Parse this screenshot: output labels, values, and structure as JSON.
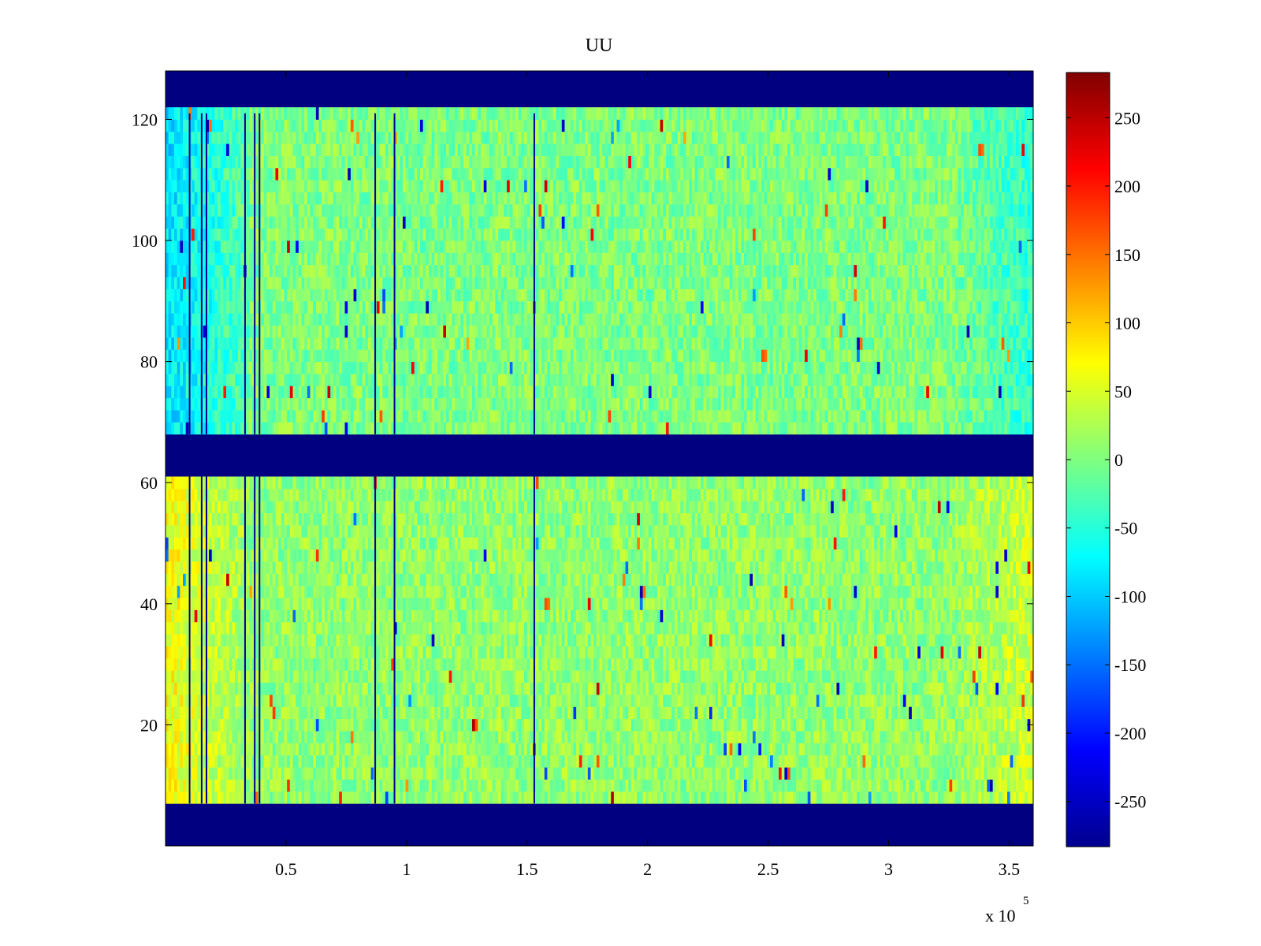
{
  "chart_data": {
    "type": "heatmap",
    "title": "UU",
    "xlabel": "",
    "ylabel": "",
    "x_multiplier_label": "x 10",
    "x_multiplier_exponent": "5",
    "xlim": [
      0,
      3.6
    ],
    "ylim": [
      0,
      128
    ],
    "x_ticks": [
      0.5,
      1,
      1.5,
      2,
      2.5,
      3,
      3.5
    ],
    "x_tick_labels": [
      "0.5",
      "1",
      "1.5",
      "2",
      "2.5",
      "3",
      "3.5"
    ],
    "y_ticks": [
      20,
      40,
      60,
      80,
      100,
      120
    ],
    "y_tick_labels": [
      "20",
      "40",
      "60",
      "80",
      "100",
      "120"
    ],
    "colormap": "jet",
    "clim": [
      -283,
      283
    ],
    "colorbar_ticks": [
      250,
      200,
      150,
      100,
      50,
      0,
      -50,
      -100,
      -150,
      -200,
      -250
    ],
    "colorbar_tick_labels": [
      "250",
      "200",
      "150",
      "100",
      "50",
      "0",
      "-50",
      "-100",
      "-150",
      "-200",
      "-250"
    ],
    "masked_rows": [
      [
        0,
        7
      ],
      [
        61,
        68
      ],
      [
        121,
        128
      ]
    ],
    "data_row_bands": [
      {
        "rows": [
          7,
          61
        ],
        "typical_value": 10,
        "left_edge_value": 70
      },
      {
        "rows": [
          68,
          121
        ],
        "typical_value": 0,
        "left_edge_value": -90
      }
    ],
    "dark_columns_x": [
      0.1,
      0.15,
      0.17,
      0.33,
      0.37,
      0.39,
      0.87,
      0.95,
      1.53
    ],
    "grid": false,
    "legend": "colorbar-right"
  }
}
